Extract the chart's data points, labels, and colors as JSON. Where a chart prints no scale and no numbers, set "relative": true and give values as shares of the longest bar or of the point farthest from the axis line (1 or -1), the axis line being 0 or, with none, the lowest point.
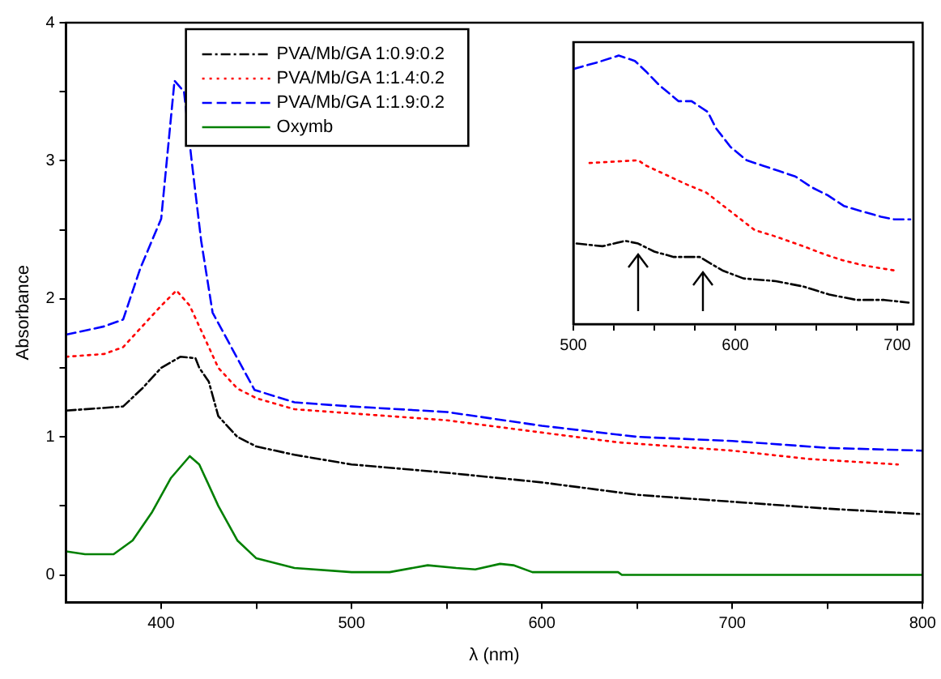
{
  "chart_data": [
    {
      "type": "line",
      "xlabel": "λ (nm)",
      "ylabel": "Absorbance",
      "xlim": [
        350,
        800
      ],
      "xticks": [
        400,
        {
          "value": 450,
          "label": null
        },
        500,
        {
          "value": 550,
          "label": null
        },
        600,
        {
          "value": 650,
          "label": null
        },
        700,
        {
          "value": 750,
          "label": null
        },
        800
      ],
      "ylim": [
        -0.2,
        4
      ],
      "yticks": [
        0,
        {
          "value": 0.5,
          "label": null
        },
        1,
        {
          "value": 1.5,
          "label": null
        },
        2,
        {
          "value": 2.5,
          "label": null
        },
        3,
        {
          "value": 3.5,
          "label": null
        },
        4
      ],
      "legend": "top left",
      "marker": "none",
      "series": [
        {
          "name": "PVA/Mb/GA 1:0.9:0.2",
          "color": "#000000",
          "line_style": "dashdot",
          "x": [
            350,
            380,
            390,
            400,
            410,
            418,
            420,
            425,
            430,
            440,
            450,
            470,
            500,
            550,
            600,
            650,
            700,
            750,
            800
          ],
          "values": [
            1.19,
            1.22,
            1.35,
            1.5,
            1.58,
            1.57,
            1.5,
            1.4,
            1.15,
            1.0,
            0.93,
            0.87,
            0.8,
            0.74,
            0.67,
            0.58,
            0.53,
            0.48,
            0.44
          ]
        },
        {
          "name": "PVA/Mb/GA 1:1.4:0.2",
          "color": "#ff0000",
          "line_style": "dotted",
          "x": [
            350,
            370,
            380,
            390,
            400,
            408,
            415,
            420,
            430,
            440,
            450,
            470,
            500,
            550,
            595,
            640,
            700,
            740,
            787
          ],
          "values": [
            1.58,
            1.6,
            1.65,
            1.8,
            1.95,
            2.06,
            1.95,
            1.8,
            1.5,
            1.35,
            1.28,
            1.2,
            1.17,
            1.12,
            1.04,
            0.96,
            0.9,
            0.84,
            0.8
          ]
        },
        {
          "name": "PVA/Mb/GA 1:1.9:0.2",
          "color": "#0000ff",
          "line_style": "dashed",
          "x": [
            350,
            370,
            380,
            389,
            400,
            407,
            412,
            416,
            421,
            427,
            438,
            449,
            470,
            500,
            550,
            600,
            650,
            700,
            750,
            800
          ],
          "values": [
            1.74,
            1.8,
            1.85,
            2.22,
            2.58,
            3.58,
            3.5,
            3.0,
            2.42,
            1.9,
            1.62,
            1.34,
            1.25,
            1.22,
            1.18,
            1.08,
            1.0,
            0.97,
            0.92,
            0.9
          ]
        },
        {
          "name": "Oxymb",
          "color": "#008000",
          "line_style": "solid",
          "x": [
            350,
            360,
            375,
            385,
            395,
            405,
            415,
            420,
            430,
            440,
            450,
            470,
            500,
            520,
            540,
            555,
            565,
            578,
            585,
            595,
            640,
            642,
            800
          ],
          "values": [
            0.17,
            0.15,
            0.15,
            0.25,
            0.45,
            0.7,
            0.86,
            0.8,
            0.5,
            0.25,
            0.12,
            0.05,
            0.02,
            0.02,
            0.07,
            0.05,
            0.04,
            0.08,
            0.07,
            0.02,
            0.02,
            0.0,
            0.0
          ]
        }
      ]
    },
    {
      "type": "line",
      "relative": true,
      "xlim": [
        500,
        710
      ],
      "xticks": [
        500,
        {
          "value": 525,
          "label": null
        },
        {
          "value": 550,
          "label": null
        },
        {
          "value": 575,
          "label": null
        },
        600,
        {
          "value": 625,
          "label": null
        },
        {
          "value": 650,
          "label": null
        },
        {
          "value": 675,
          "label": null
        },
        700
      ],
      "tick_labels": "x",
      "marker": "none",
      "series": [
        {
          "color": "#000000",
          "line_style": "dashdot",
          "x": [
            502,
            518,
            532,
            540,
            550,
            562,
            578,
            592,
            605,
            625,
            642,
            658,
            675,
            692,
            707
          ],
          "values": [
            0.3,
            0.29,
            0.31,
            0.3,
            0.27,
            0.25,
            0.25,
            0.2,
            0.17,
            0.16,
            0.14,
            0.11,
            0.09,
            0.09,
            0.08
          ]
        },
        {
          "color": "#ff0000",
          "line_style": "dotted",
          "x": [
            510,
            540,
            545,
            570,
            582,
            612,
            623,
            642,
            655,
            665,
            678,
            698
          ],
          "values": [
            0.6,
            0.61,
            0.59,
            0.52,
            0.49,
            0.35,
            0.33,
            0.29,
            0.26,
            0.24,
            0.22,
            0.2
          ]
        },
        {
          "color": "#0000ff",
          "line_style": "dashed",
          "x": [
            500,
            515,
            528,
            538,
            545,
            553,
            565,
            573,
            583,
            588,
            597,
            607,
            617,
            627,
            637,
            647,
            657,
            667,
            678,
            690,
            698,
            708
          ],
          "values": [
            0.95,
            0.975,
            1.0,
            0.98,
            0.94,
            0.89,
            0.83,
            0.83,
            0.79,
            0.73,
            0.66,
            0.61,
            0.59,
            0.57,
            0.55,
            0.51,
            0.48,
            0.44,
            0.42,
            0.4,
            0.39,
            0.39
          ]
        }
      ]
    }
  ]
}
